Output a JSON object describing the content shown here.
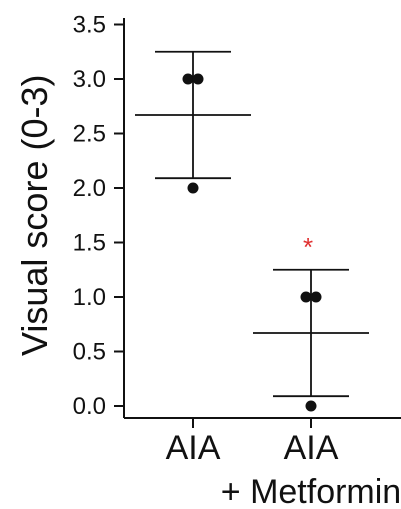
{
  "chart_data": {
    "type": "scatter",
    "title": "",
    "ylabel": "Visual score (0-3)",
    "xlabel": "",
    "ylim": [
      0,
      3.5
    ],
    "yticks": [
      0.0,
      0.5,
      1.0,
      1.5,
      2.0,
      2.5,
      3.0,
      3.5
    ],
    "ytick_labels": [
      "0.0",
      "0.5",
      "1.0",
      "1.5",
      "2.0",
      "2.5",
      "3.0",
      "3.5"
    ],
    "grid": false,
    "categories": [
      {
        "line1": "AIA",
        "line2": ""
      },
      {
        "line1": "AIA",
        "line2": "+ Metformin"
      }
    ],
    "groups": [
      {
        "points": [
          3.0,
          3.0,
          2.0
        ],
        "mean": 2.67,
        "sd_low": 2.09,
        "sd_high": 3.25,
        "significance": ""
      },
      {
        "points": [
          1.0,
          1.0,
          0.0
        ],
        "mean": 0.67,
        "sd_low": 0.09,
        "sd_high": 1.25,
        "significance": "*"
      }
    ],
    "colors": {
      "points": "#111111",
      "lines": "#111111",
      "significance": "#e03030"
    }
  }
}
